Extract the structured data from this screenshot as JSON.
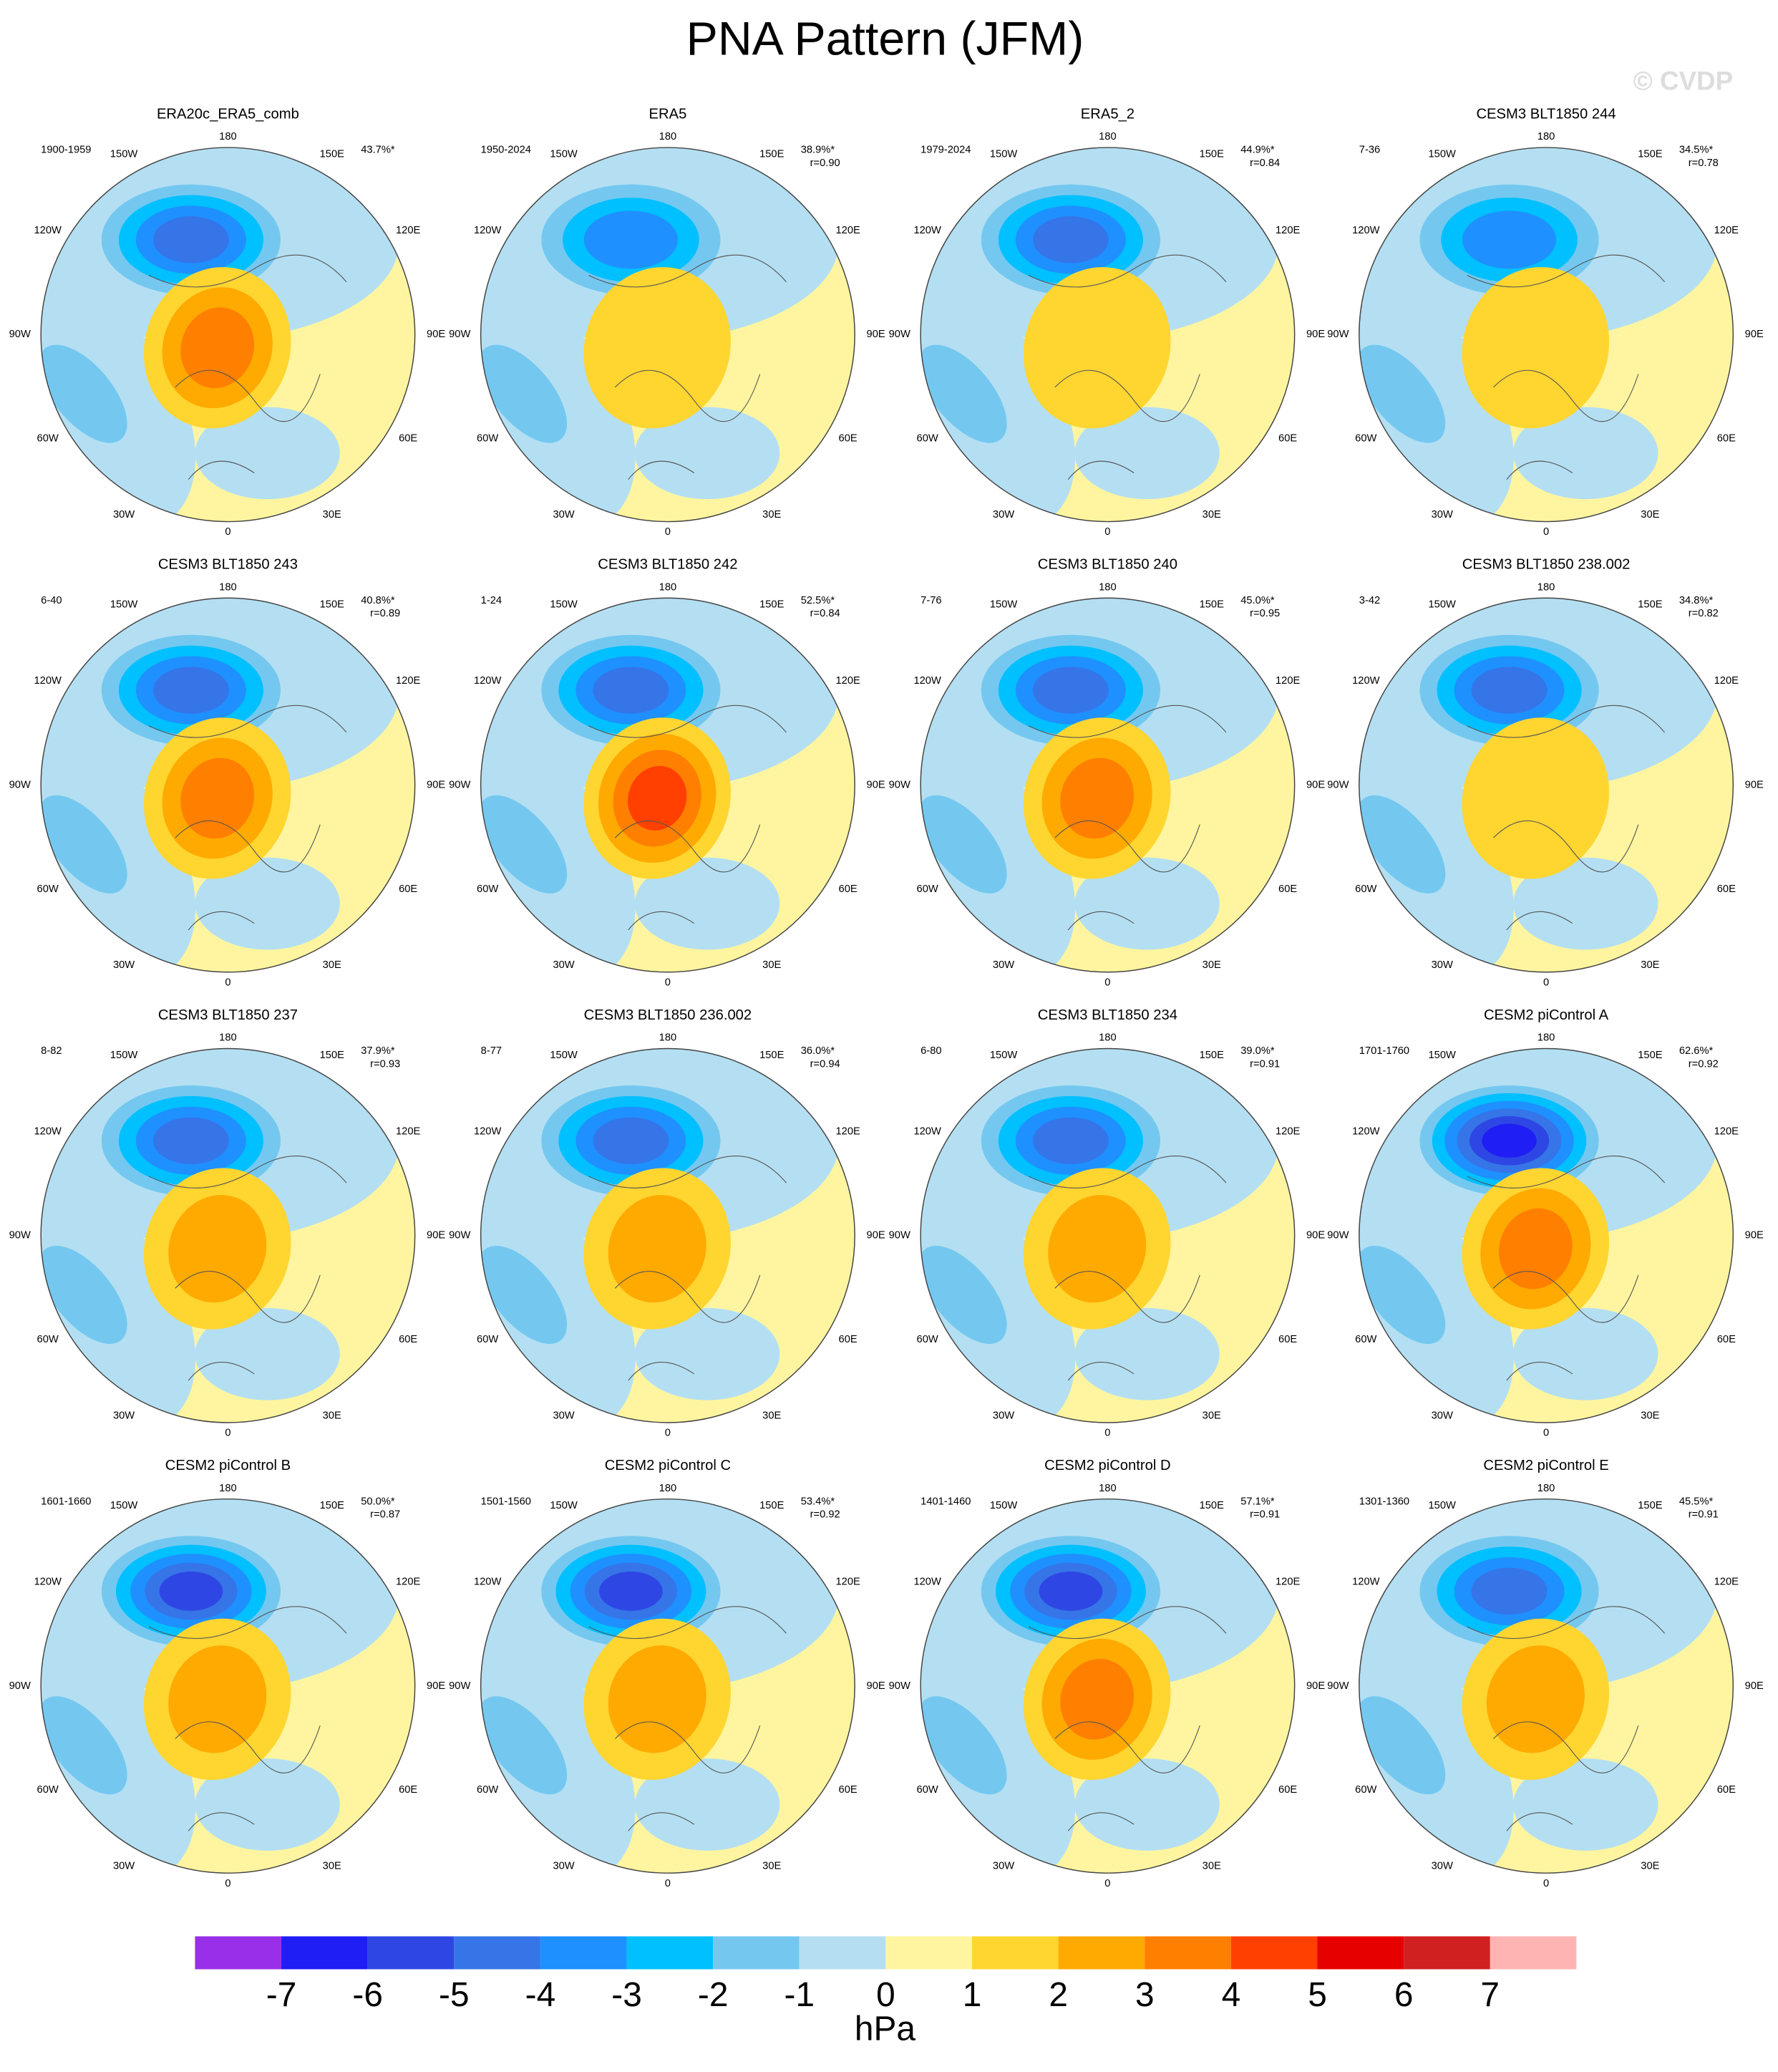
{
  "title": "PNA Pattern (JFM)",
  "watermark": "© CVDP",
  "longitude_labels": [
    "180",
    "150E",
    "120E",
    "90E",
    "60E",
    "30E",
    "0",
    "30W",
    "60W",
    "90W",
    "120W",
    "150W"
  ],
  "panels": [
    {
      "title": "ERA20c_ERA5_comb",
      "period": "1900-1959",
      "percent": "43.7%*"
    },
    {
      "title": "ERA5",
      "period": "1950-2024",
      "percent": "38.9%*",
      "r": "r=0.90"
    },
    {
      "title": "ERA5_2",
      "period": "1979-2024",
      "percent": "44.9%*",
      "r": "r=0.84"
    },
    {
      "title": "CESM3 BLT1850 244",
      "period": "7-36",
      "percent": "34.5%*",
      "r": "r=0.78"
    },
    {
      "title": "CESM3 BLT1850 243",
      "period": "6-40",
      "percent": "40.8%*",
      "r": "r=0.89"
    },
    {
      "title": "CESM3 BLT1850 242",
      "period": "1-24",
      "percent": "52.5%*",
      "r": "r=0.84"
    },
    {
      "title": "CESM3 BLT1850 240",
      "period": "7-76",
      "percent": "45.0%*",
      "r": "r=0.95"
    },
    {
      "title": "CESM3 BLT1850 238.002",
      "period": "3-42",
      "percent": "34.8%*",
      "r": "r=0.82"
    },
    {
      "title": "CESM3 BLT1850 237",
      "period": "8-82",
      "percent": "37.9%*",
      "r": "r=0.93"
    },
    {
      "title": "CESM3 BLT1850 236.002",
      "period": "8-77",
      "percent": "36.0%*",
      "r": "r=0.94"
    },
    {
      "title": "CESM3 BLT1850 234",
      "period": "6-80",
      "percent": "39.0%*",
      "r": "r=0.91"
    },
    {
      "title": "CESM2 piControl A",
      "period": "1701-1760",
      "percent": "62.6%*",
      "r": "r=0.92"
    },
    {
      "title": "CESM2 piControl B",
      "period": "1601-1660",
      "percent": "50.0%*",
      "r": "r=0.87"
    },
    {
      "title": "CESM2 piControl C",
      "period": "1501-1560",
      "percent": "53.4%*",
      "r": "r=0.92"
    },
    {
      "title": "CESM2 piControl D",
      "period": "1401-1460",
      "percent": "57.1%*",
      "r": "r=0.91"
    },
    {
      "title": "CESM2 piControl E",
      "period": "1301-1360",
      "percent": "45.5%*",
      "r": "r=0.91"
    }
  ],
  "colorbar": {
    "ticks": [
      -7,
      -6,
      -5,
      -4,
      -3,
      -2,
      -1,
      0,
      1,
      2,
      3,
      4,
      5,
      6,
      7
    ],
    "colors": [
      "#9a2fea",
      "#1e1ef5",
      "#2e47e4",
      "#3575e8",
      "#1e90ff",
      "#00c0ff",
      "#74c8f0",
      "#b4dff2",
      "#fff5a0",
      "#ffd530",
      "#ffaa00",
      "#ff7f00",
      "#ff4000",
      "#e60000",
      "#d02020",
      "#ffb4b4"
    ],
    "unit": "hPa"
  }
}
